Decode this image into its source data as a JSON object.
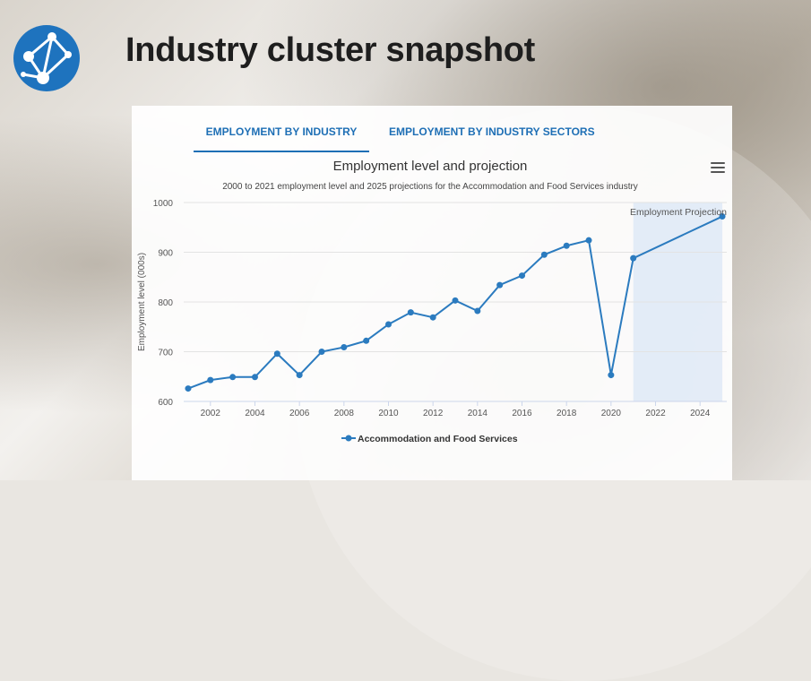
{
  "page": {
    "title": "Industry cluster snapshot"
  },
  "tabs": [
    {
      "label": "EMPLOYMENT BY INDUSTRY",
      "active": true
    },
    {
      "label": "EMPLOYMENT BY INDUSTRY SECTORS",
      "active": false
    }
  ],
  "colors": {
    "accent": "#1e6fb5",
    "series": "#2b7bbf",
    "projection_band": "#dde9f6"
  },
  "chart_data": {
    "type": "line",
    "title": "Employment level and projection",
    "subtitle": "2000 to 2021 employment level and 2025 projections for the Accommodation and Food Services industry",
    "ylabel": "Employment level (000s)",
    "xlabel": "",
    "xlim": [
      2000.8,
      2025.2
    ],
    "ylim": [
      600,
      1000
    ],
    "x_ticks": [
      2002,
      2004,
      2006,
      2008,
      2010,
      2012,
      2014,
      2016,
      2018,
      2020,
      2022,
      2024
    ],
    "y_ticks": [
      600,
      700,
      800,
      900,
      1000
    ],
    "grid": true,
    "legend": "bottom-center",
    "projection_band": {
      "from": 2021,
      "to": 2025,
      "label": "Employment Projection"
    },
    "series": [
      {
        "name": "Accommodation and Food Services",
        "x": [
          2001,
          2002,
          2003,
          2004,
          2005,
          2006,
          2007,
          2008,
          2009,
          2010,
          2011,
          2012,
          2013,
          2014,
          2015,
          2016,
          2017,
          2018,
          2019,
          2020,
          2021,
          2025
        ],
        "values": [
          626,
          643,
          649,
          649,
          696,
          653,
          700,
          709,
          722,
          755,
          779,
          769,
          803,
          782,
          834,
          853,
          895,
          913,
          924,
          653,
          888,
          972
        ]
      }
    ]
  }
}
